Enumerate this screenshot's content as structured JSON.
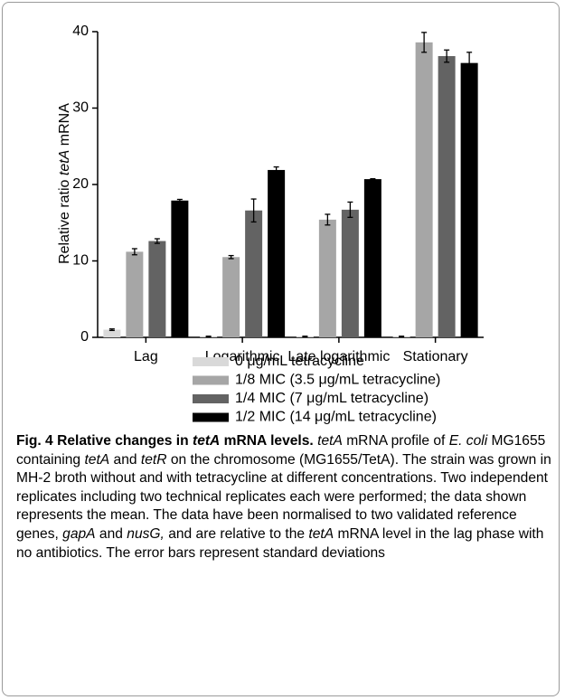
{
  "chart_data": {
    "type": "bar",
    "y_label": [
      {
        "text": "Relative ratio "
      },
      {
        "text": "tetA",
        "italic": true
      },
      {
        "text": " mRNA"
      }
    ],
    "categories": [
      "Lag",
      "Logarithmic",
      "Late logarithmic",
      "Stationary"
    ],
    "series": [
      {
        "name": "0 μg/mL tetracycline",
        "color": "#d9d9d9",
        "values": [
          1.0,
          0.1,
          0.1,
          0.1
        ],
        "errors": [
          0.1,
          0.05,
          0.05,
          0.05
        ]
      },
      {
        "name": "1/8 MIC (3.5 μg/mL tetracycline)",
        "color": "#a6a6a6",
        "values": [
          11.2,
          10.5,
          15.4,
          38.6
        ],
        "errors": [
          0.4,
          0.2,
          0.7,
          1.3
        ]
      },
      {
        "name": "1/4 MIC (7 μg/mL tetracycline)",
        "color": "#636363",
        "values": [
          12.6,
          16.6,
          16.7,
          36.8
        ],
        "errors": [
          0.3,
          1.5,
          1.0,
          0.8
        ]
      },
      {
        "name": "1/2 MIC (14 μg/mL tetracycline)",
        "color": "#000000",
        "values": [
          17.9,
          21.9,
          20.7,
          35.9
        ],
        "errors": [
          0.15,
          0.4,
          0.05,
          1.4
        ]
      }
    ],
    "ylim": [
      0,
      40
    ],
    "yticks": [
      0,
      10,
      20,
      30,
      40
    ],
    "grid": false
  },
  "caption": {
    "runs": [
      {
        "text": "Fig. 4",
        "bold": true
      },
      {
        "text": " Relative changes in ",
        "bold": true
      },
      {
        "text": "tetA",
        "bold": true,
        "italic": true
      },
      {
        "text": " mRNA levels.",
        "bold": true
      },
      {
        "text": " "
      },
      {
        "text": "tetA",
        "italic": true
      },
      {
        "text": " mRNA profile of "
      },
      {
        "text": "E. coli",
        "italic": true
      },
      {
        "text": " MG1655 containing "
      },
      {
        "text": "tetA",
        "italic": true
      },
      {
        "text": " and "
      },
      {
        "text": "tetR",
        "italic": true
      },
      {
        "text": " on the chromosome (MG1655/TetA). The strain was grown in MH-2 broth without and with tetracycline at different concentrations. Two independent replicates including two technical replicates each were performed; the data shown represents the mean. The data have been normalised to two validated reference genes, "
      },
      {
        "text": "gapA",
        "italic": true
      },
      {
        "text": " and "
      },
      {
        "text": "nusG,",
        "italic": true
      },
      {
        "text": " and are relative to the "
      },
      {
        "text": "tetA",
        "italic": true
      },
      {
        "text": " mRNA level in the lag phase with no antibiotics. The error bars represent standard deviations"
      }
    ]
  }
}
